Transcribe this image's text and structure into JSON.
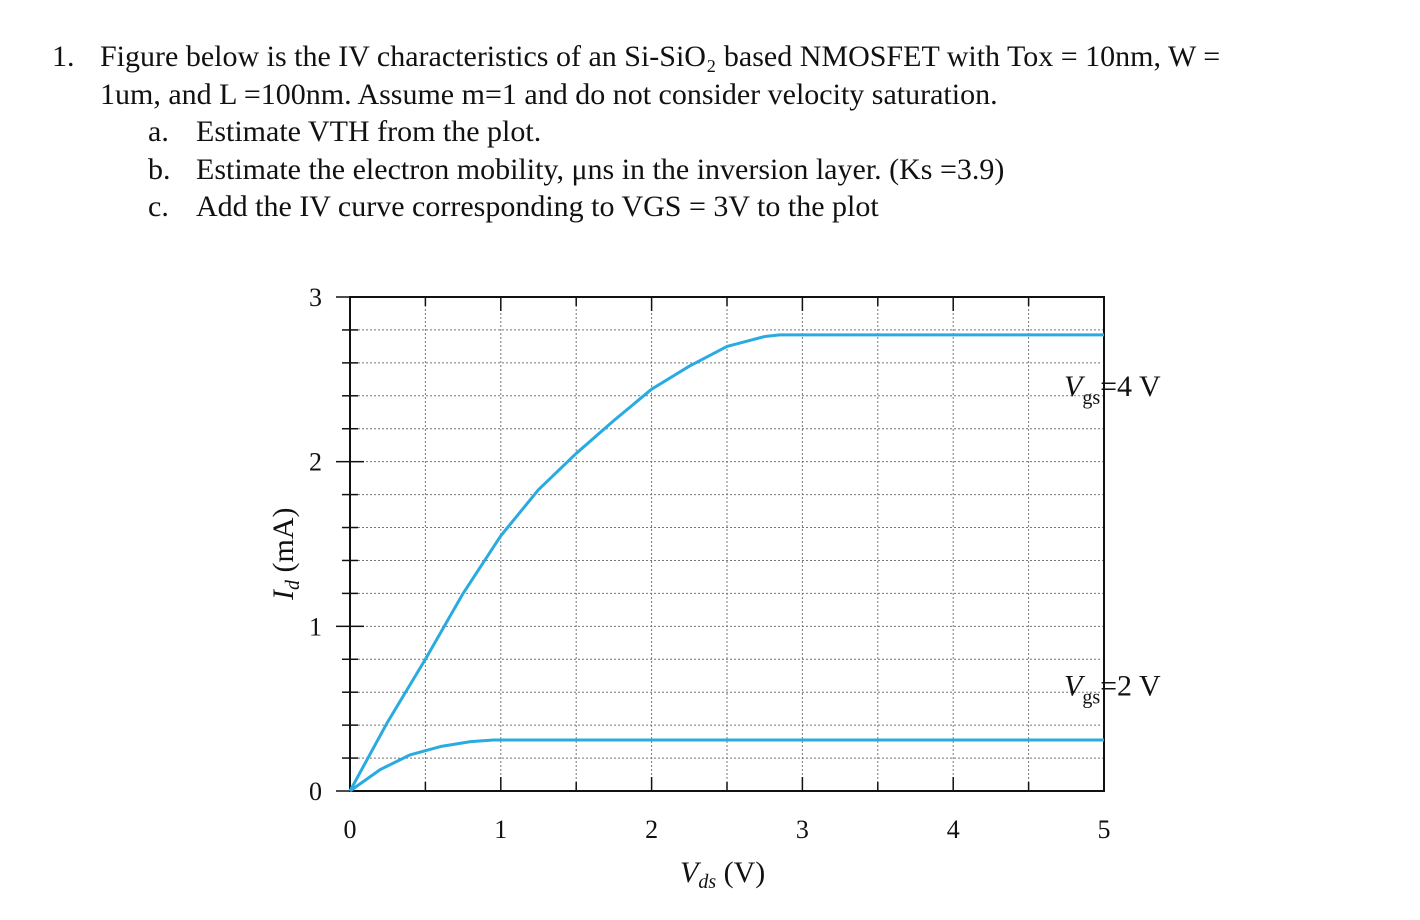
{
  "problem": {
    "number": "1.",
    "statement_line1": "Figure below is the IV characteristics of an Si-SiO₂ based NMOSFET with Tox = 10nm, W =",
    "statement_line2": "1um, and L =100nm. Assume m=1 and do not consider velocity saturation.",
    "parts": [
      {
        "label": "a.",
        "text": "Estimate VTH from the plot."
      },
      {
        "label": "b.",
        "text": "Estimate the electron mobility, μns in the inversion layer. (Ks =3.9)"
      },
      {
        "label": "c.",
        "text": "Add the IV curve corresponding to VGS = 3V to the plot"
      }
    ]
  },
  "chart_data": {
    "type": "line",
    "xlabel_main": "V",
    "xlabel_sub": "ds",
    "xlabel_unit": " (V)",
    "ylabel_main": "I",
    "ylabel_sub": "d",
    "ylabel_unit": " (mA)",
    "xlim": [
      0,
      5
    ],
    "ylim": [
      0,
      3
    ],
    "x_ticks": [
      "0",
      "1",
      "2",
      "3",
      "4",
      "5"
    ],
    "y_ticks": [
      "0",
      "1",
      "2",
      "3"
    ],
    "grid": true,
    "line_color": "#29abe2",
    "series": [
      {
        "name_main": "V",
        "name_sub": "gs",
        "name_rest": "=4 V",
        "points": [
          [
            0,
            0
          ],
          [
            0.25,
            0.42
          ],
          [
            0.5,
            0.8
          ],
          [
            0.75,
            1.2
          ],
          [
            1,
            1.55
          ],
          [
            1.25,
            1.83
          ],
          [
            1.5,
            2.05
          ],
          [
            1.75,
            2.25
          ],
          [
            2,
            2.44
          ],
          [
            2.25,
            2.58
          ],
          [
            2.5,
            2.7
          ],
          [
            2.75,
            2.76
          ],
          [
            2.85,
            2.77
          ],
          [
            5,
            2.77
          ]
        ]
      },
      {
        "name_main": "V",
        "name_sub": "gs",
        "name_rest": "=2 V",
        "points": [
          [
            0,
            0
          ],
          [
            0.2,
            0.13
          ],
          [
            0.4,
            0.22
          ],
          [
            0.6,
            0.27
          ],
          [
            0.8,
            0.3
          ],
          [
            0.95,
            0.31
          ],
          [
            5,
            0.31
          ]
        ]
      }
    ]
  }
}
